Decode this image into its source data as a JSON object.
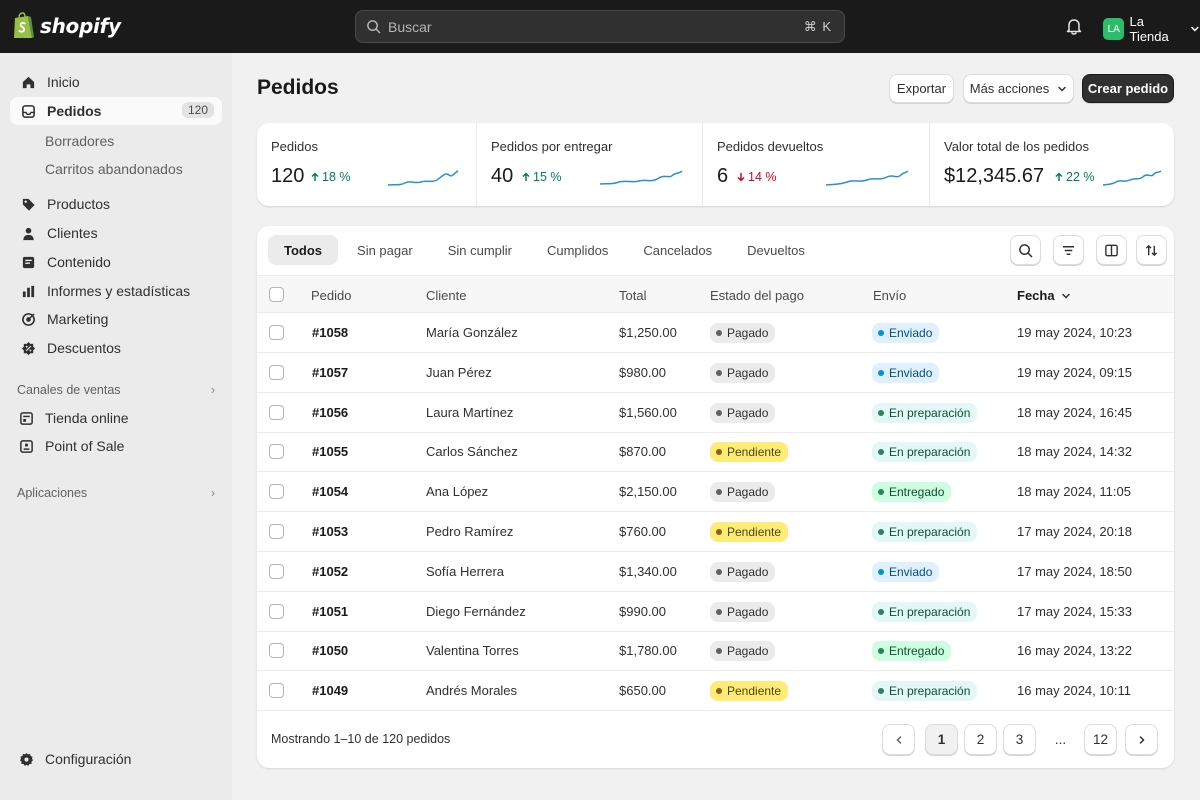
{
  "topbar": {
    "logo_text": "shopify",
    "search_placeholder": "Buscar",
    "search_shortcut": "⌘ K",
    "store_initials": "LA",
    "store_name": "La Tienda"
  },
  "sidebar": {
    "items": [
      {
        "label": "Inicio",
        "icon": "home-icon"
      },
      {
        "label": "Pedidos",
        "icon": "orders-icon",
        "count": "120"
      },
      {
        "label": "Borradores"
      },
      {
        "label": "Carritos abandonados"
      },
      {
        "label": "Productos",
        "icon": "tag-icon"
      },
      {
        "label": "Clientes",
        "icon": "person-icon"
      },
      {
        "label": "Contenido",
        "icon": "content-icon"
      },
      {
        "label": "Informes y estadísticas",
        "icon": "chart-icon"
      },
      {
        "label": "Marketing",
        "icon": "target-icon"
      },
      {
        "label": "Descuentos",
        "icon": "discount-icon"
      }
    ],
    "sales_channels_title": "Canales de ventas",
    "channels": [
      {
        "label": "Tienda online",
        "icon": "store-icon"
      },
      {
        "label": "Point of Sale",
        "icon": "pos-icon"
      }
    ],
    "apps_title": "Aplicaciones",
    "settings_label": "Configuración"
  },
  "header": {
    "title": "Pedidos",
    "export_label": "Exportar",
    "more_actions_label": "Más acciones",
    "create_label": "Crear pedido"
  },
  "stats": [
    {
      "label": "Pedidos",
      "value": "120",
      "delta": "18 %",
      "direction": "up"
    },
    {
      "label": "Pedidos por entregar",
      "value": "40",
      "delta": "15 %",
      "direction": "up"
    },
    {
      "label": "Pedidos devueltos",
      "value": "6",
      "delta": "14 %",
      "direction": "down"
    },
    {
      "label": "Valor total de los pedidos",
      "value": "$12,345.67",
      "delta": "22 %",
      "direction": "up"
    }
  ],
  "tabs": [
    "Todos",
    "Sin pagar",
    "Sin cumplir",
    "Cumplidos",
    "Cancelados",
    "Devueltos"
  ],
  "table": {
    "headers": {
      "order": "Pedido",
      "customer": "Cliente",
      "total": "Total",
      "payment": "Estado del pago",
      "shipping": "Envío",
      "date": "Fecha"
    },
    "rows": [
      {
        "order": "#1058",
        "customer": "María González",
        "total": "$1,250.00",
        "payment": "Pagado",
        "shipping": "Enviado",
        "date": "19 may 2024, 10:23"
      },
      {
        "order": "#1057",
        "customer": "Juan Pérez",
        "total": "$980.00",
        "payment": "Pagado",
        "shipping": "Enviado",
        "date": "19 may 2024, 09:15"
      },
      {
        "order": "#1056",
        "customer": "Laura Martínez",
        "total": "$1,560.00",
        "payment": "Pagado",
        "shipping": "En preparación",
        "date": "18 may 2024, 16:45"
      },
      {
        "order": "#1055",
        "customer": "Carlos Sánchez",
        "total": "$870.00",
        "payment": "Pendiente",
        "shipping": "En preparación",
        "date": "18 may 2024, 14:32"
      },
      {
        "order": "#1054",
        "customer": "Ana López",
        "total": "$2,150.00",
        "payment": "Pagado",
        "shipping": "Entregado",
        "date": "18 may 2024, 11:05"
      },
      {
        "order": "#1053",
        "customer": "Pedro Ramírez",
        "total": "$760.00",
        "payment": "Pendiente",
        "shipping": "En preparación",
        "date": "17 may 2024, 20:18"
      },
      {
        "order": "#1052",
        "customer": "Sofía Herrera",
        "total": "$1,340.00",
        "payment": "Pagado",
        "shipping": "Enviado",
        "date": "17 may 2024, 18:50"
      },
      {
        "order": "#1051",
        "customer": "Diego Fernández",
        "total": "$990.00",
        "payment": "Pagado",
        "shipping": "En preparación",
        "date": "17 may 2024, 15:33"
      },
      {
        "order": "#1050",
        "customer": "Valentina Torres",
        "total": "$1,780.00",
        "payment": "Pagado",
        "shipping": "Entregado",
        "date": "16 may 2024, 13:22"
      },
      {
        "order": "#1049",
        "customer": "Andrés Morales",
        "total": "$650.00",
        "payment": "Pendiente",
        "shipping": "En preparación",
        "date": "16 may 2024, 10:11"
      }
    ]
  },
  "pagination": {
    "summary": "Mostrando 1–10 de 120 pedidos",
    "pages": [
      "1",
      "2",
      "3",
      "...",
      "12"
    ]
  }
}
